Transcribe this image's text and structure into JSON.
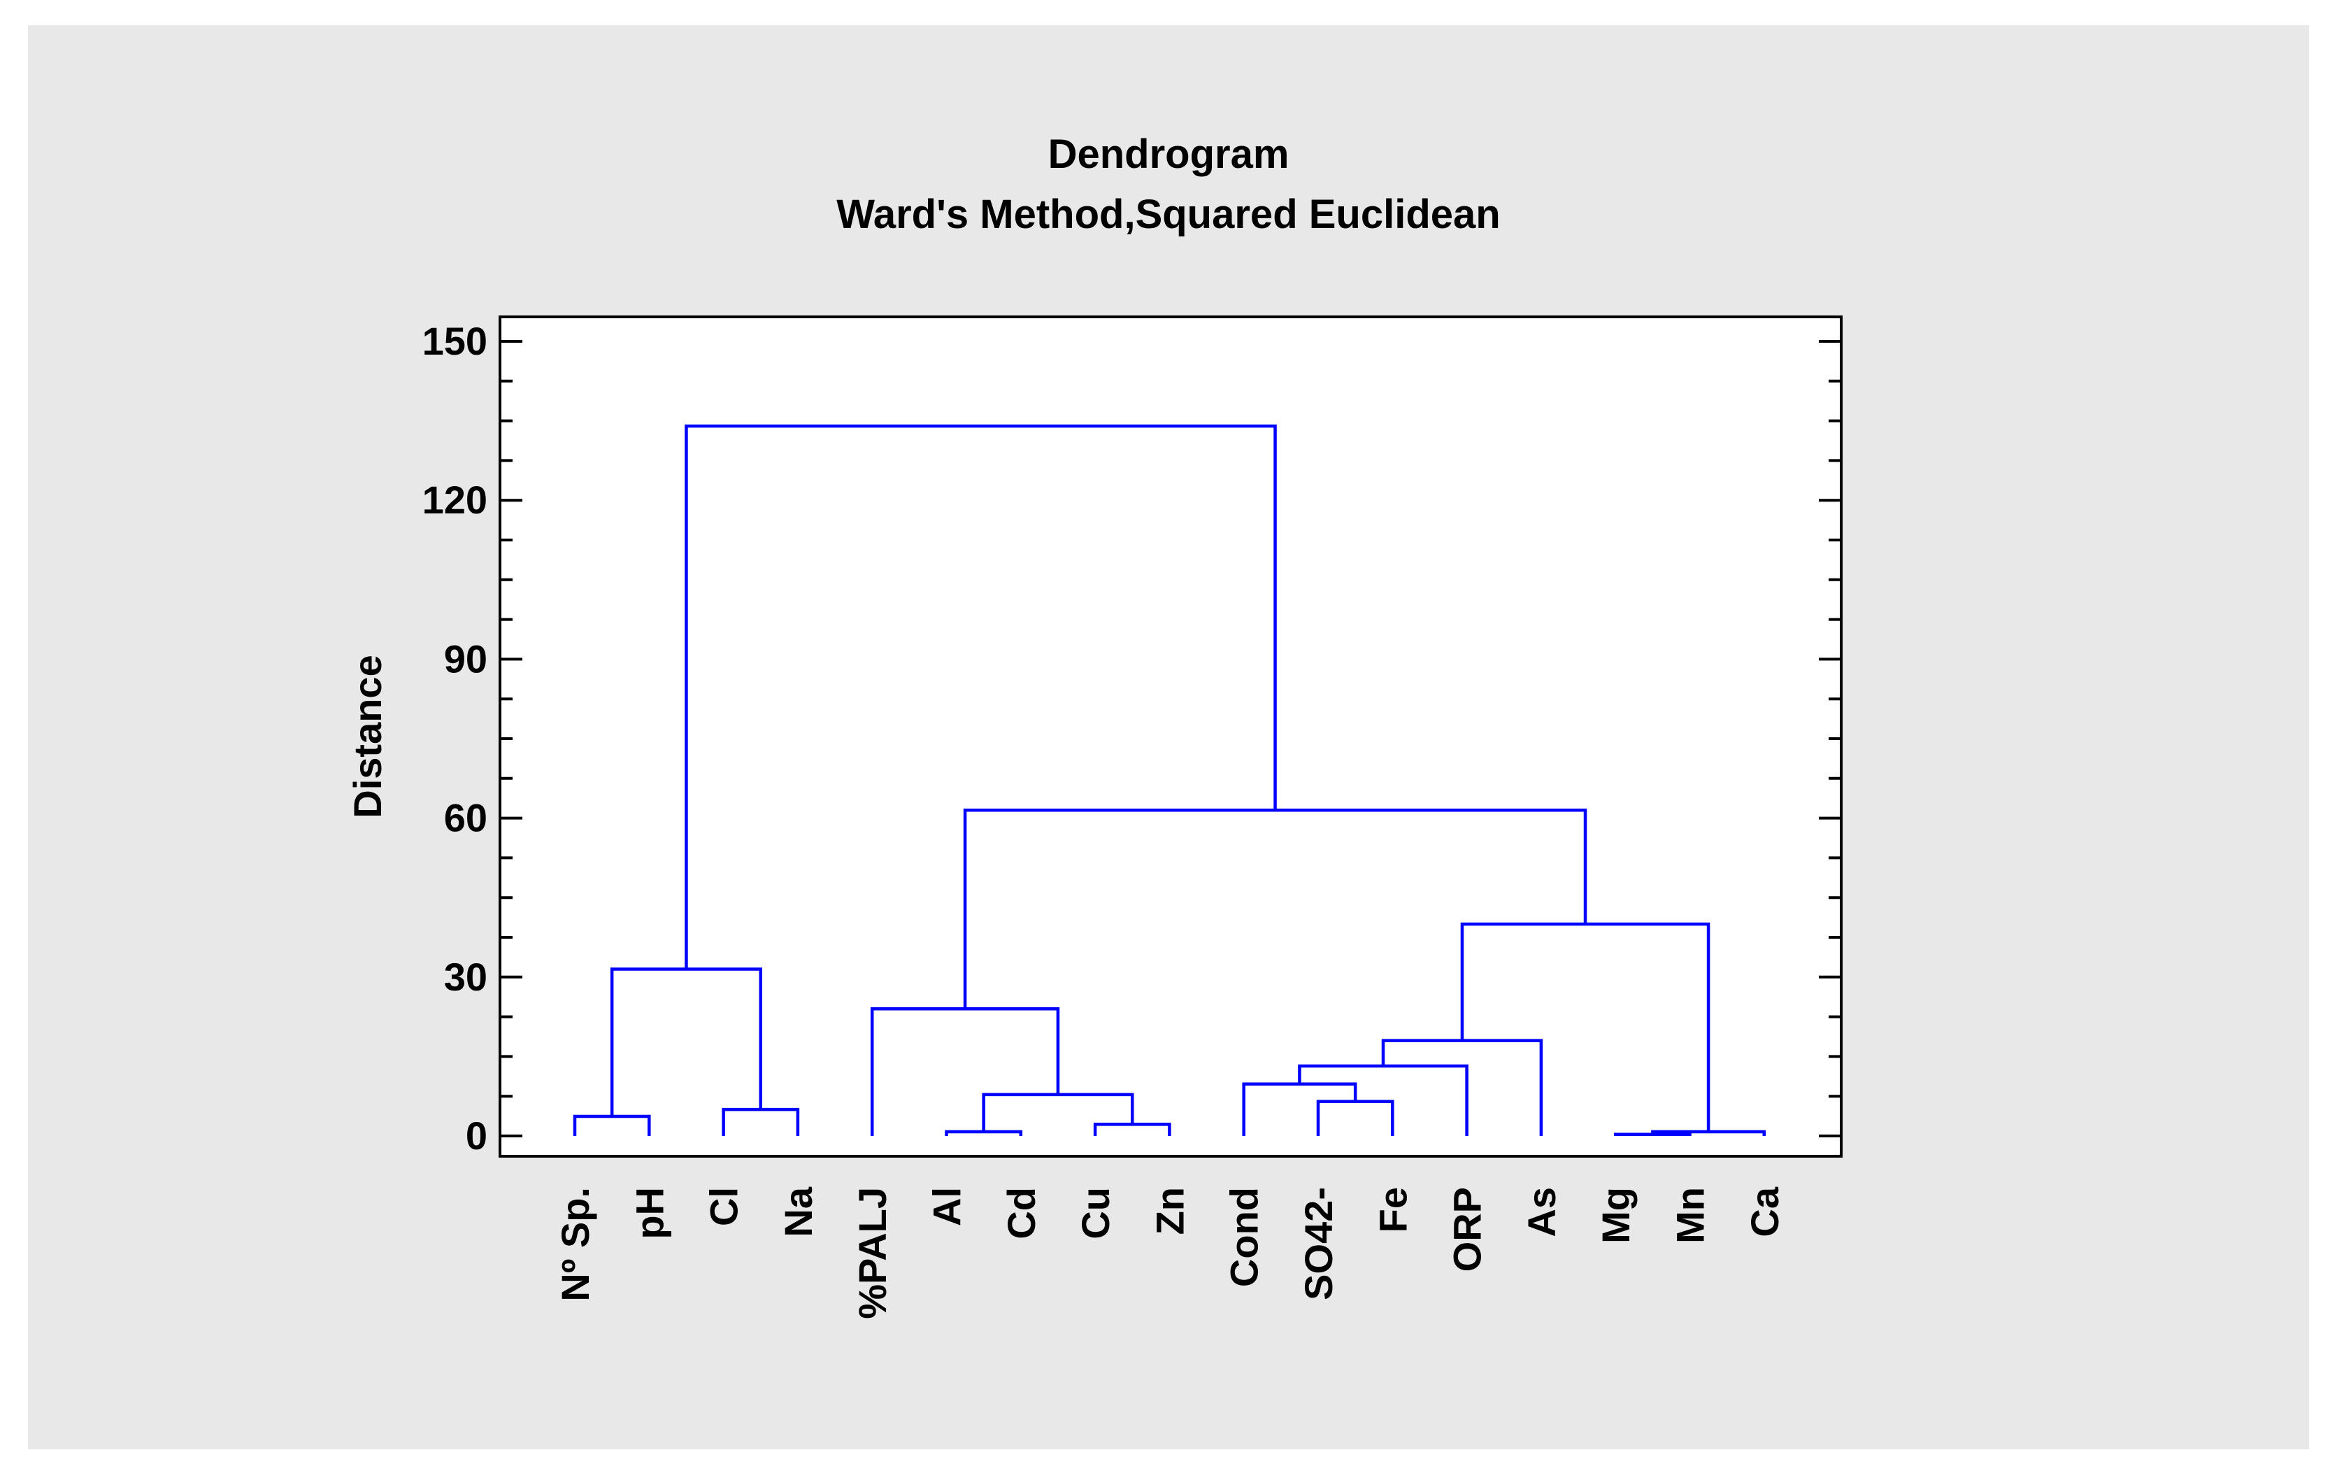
{
  "chart_data": {
    "type": "dendrogram",
    "title": "Dendrogram",
    "subtitle": "Ward's Method,Squared Euclidean",
    "xlabel": "",
    "ylabel": "Distance",
    "ylim": [
      -4,
      155
    ],
    "yticks": [
      0,
      30,
      60,
      90,
      120,
      150
    ],
    "grid": false,
    "leaves": [
      "Nº Sp.",
      "pH",
      "Cl",
      "Na",
      "%PALJ",
      "Al",
      "Cd",
      "Cu",
      "Zn",
      "Cond",
      "SO42-",
      "Fe",
      "ORP",
      "As",
      "Mg",
      "Mn",
      "Ca"
    ],
    "merges": [
      {
        "left": "leaf:14",
        "right": "leaf:15",
        "height": 0.3
      },
      {
        "left": "merge:0",
        "right": "leaf:16",
        "height": 0.8
      },
      {
        "left": "leaf:5",
        "right": "leaf:6",
        "height": 0.8
      },
      {
        "left": "leaf:7",
        "right": "leaf:8",
        "height": 2.2
      },
      {
        "left": "leaf:0",
        "right": "leaf:1",
        "height": 3.7
      },
      {
        "left": "leaf:2",
        "right": "leaf:3",
        "height": 5.0
      },
      {
        "left": "leaf:10",
        "right": "leaf:11",
        "height": 6.5
      },
      {
        "left": "merge:2",
        "right": "merge:3",
        "height": 7.8
      },
      {
        "left": "leaf:9",
        "right": "merge:6",
        "height": 9.8
      },
      {
        "left": "merge:8",
        "right": "leaf:12",
        "height": 13.2
      },
      {
        "left": "merge:9",
        "right": "leaf:13",
        "height": 18.0
      },
      {
        "left": "leaf:4",
        "right": "merge:7",
        "height": 24.0
      },
      {
        "left": "merge:4",
        "right": "merge:5",
        "height": 31.5
      },
      {
        "left": "merge:10",
        "right": "merge:1",
        "height": 40.0
      },
      {
        "left": "merge:11",
        "right": "merge:13",
        "height": 61.5
      },
      {
        "left": "merge:12",
        "right": "merge:14",
        "height": 134.0
      }
    ]
  },
  "colors": {
    "background": "#e8e8e8",
    "plot_background": "#ffffff",
    "line": "#0000ff",
    "axis": "#000000"
  }
}
